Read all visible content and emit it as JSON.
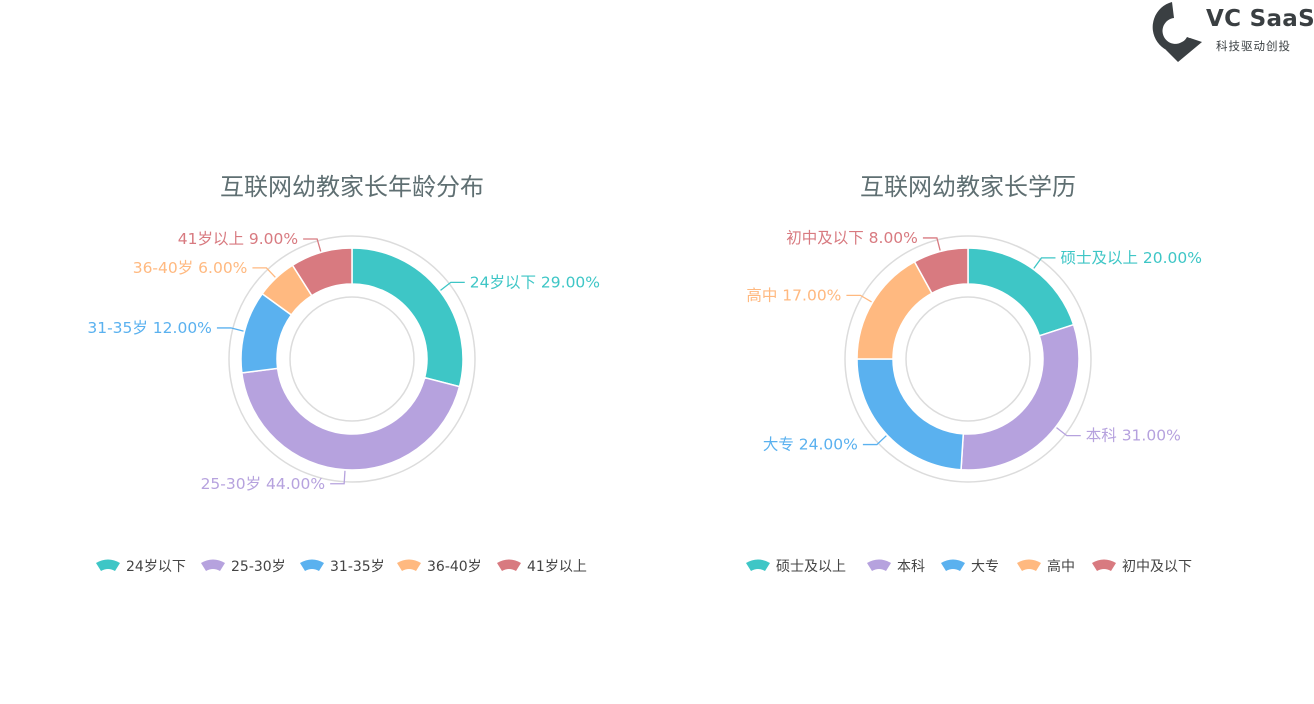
{
  "brand": {
    "name": "VC SaaS",
    "slogan": "科技驱动创投",
    "icon": "vc-saas-logo-icon",
    "color": "#3a3f42"
  },
  "chart_data": [
    {
      "type": "pie",
      "variant": "donut",
      "title": "互联网幼教家长年龄分布",
      "legend_position": "bottom",
      "categories": [
        "24岁以下",
        "25-30岁",
        "31-35岁",
        "36-40岁",
        "41岁以上"
      ],
      "values": [
        29,
        44,
        12,
        6,
        9
      ],
      "labels": [
        "24岁以下 29.00%",
        "25-30岁 44.00%",
        "31-35岁 12.00%",
        "36-40岁 6.00%",
        "41岁以上 9.00%"
      ],
      "colors": [
        "#3ec6c6",
        "#b6a2de",
        "#5ab1ef",
        "#ffb980",
        "#d87a80"
      ]
    },
    {
      "type": "pie",
      "variant": "donut",
      "title": "互联网幼教家长学历",
      "legend_position": "bottom",
      "categories": [
        "硕士及以上",
        "本科",
        "大专",
        "高中",
        "初中及以下"
      ],
      "values": [
        20,
        31,
        24,
        17,
        8
      ],
      "labels": [
        "硕士及以上 20.00%",
        "本科 31.00%",
        "大专 24.00%",
        "高中 17.00%",
        "初中及以下 8.00%"
      ],
      "colors": [
        "#3ec6c6",
        "#b6a2de",
        "#5ab1ef",
        "#ffb980",
        "#d87a80"
      ]
    }
  ]
}
